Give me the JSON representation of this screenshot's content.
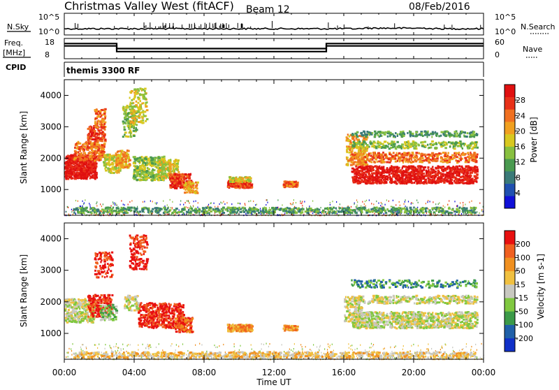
{
  "header": {
    "station": "Christmas Valley West (fitACF)",
    "beam": "Beam 12",
    "date": "08/Feb/2016"
  },
  "mini_panels": {
    "nsky_label": "N.Sky",
    "nsky_ticks": [
      "10^5",
      "10^0"
    ],
    "nsearch_label": "N.Search",
    "nsearch_ticks": [
      "10^5",
      "10^0"
    ],
    "freq_label_line1": "Freq.",
    "freq_label_line2": "[MHz]",
    "freq_ticks": [
      "18",
      "8"
    ],
    "nave_label": "Nave",
    "nave_ticks": [
      "60",
      "0"
    ],
    "cpid_label": "CPID",
    "cpid_text": "themis 3300 RF"
  },
  "chart_data": [
    {
      "type": "heatmap",
      "name": "power",
      "ylabel": "Slant Range [km]",
      "ylim": [
        180,
        4500
      ],
      "xlim_hours": [
        0,
        24
      ],
      "yticks": [
        1000,
        2000,
        3000,
        4000
      ],
      "colorbar": {
        "label": "Power [dB]",
        "range": [
          0,
          32
        ],
        "ticks": [
          "4",
          "8",
          "12",
          "16",
          "20",
          "24",
          "28"
        ],
        "colors": [
          "#1010d8",
          "#2050b0",
          "#3a7a78",
          "#4a9a50",
          "#88c040",
          "#d8c820",
          "#f0a020",
          "#f07020",
          "#e83018",
          "#e01010"
        ]
      }
    },
    {
      "type": "heatmap",
      "name": "velocity",
      "ylabel": "Slant Range [km]",
      "ylim": [
        180,
        4500
      ],
      "xlim_hours": [
        0,
        24
      ],
      "yticks": [
        1000,
        2000,
        3000,
        4000
      ],
      "colorbar": {
        "label": "Velocity [m s-1]",
        "ticks": [
          "200",
          "100",
          "50",
          "15",
          "-15",
          "-50",
          "-100",
          "-200"
        ],
        "colors": [
          "#1030c8",
          "#2060a8",
          "#3c9a48",
          "#80c840",
          "#c8c8c0",
          "#f0c040",
          "#f09020",
          "#f06020",
          "#e81010"
        ]
      }
    }
  ],
  "xaxis": {
    "ticks": [
      "00:00",
      "04:00",
      "08:00",
      "12:00",
      "16:00",
      "20:00",
      "00:00"
    ],
    "label": "Time UT"
  },
  "frequency_series": {
    "x_hours": [
      0,
      3,
      3,
      15,
      15,
      24
    ],
    "upper_mhz": [
      15.5,
      15.5,
      13.0,
      13.0,
      15.5,
      15.5
    ],
    "lower_mhz": [
      14.3,
      14.3,
      11.5,
      11.5,
      14.3,
      14.3
    ]
  },
  "echo_blobs_power": [
    {
      "t": 0.9,
      "r": 1750,
      "dt": 0.9,
      "dr": 380,
      "c": 9,
      "n": 170
    },
    {
      "t": 1.4,
      "r": 2250,
      "dt": 0.9,
      "dr": 300,
      "c": 7,
      "n": 70
    },
    {
      "t": 1.8,
      "r": 2800,
      "dt": 0.5,
      "dr": 250,
      "c": 8,
      "n": 40
    },
    {
      "t": 2.0,
      "r": 3300,
      "dt": 0.3,
      "dr": 300,
      "c": 7,
      "n": 25
    },
    {
      "t": 2.7,
      "r": 1850,
      "dt": 0.5,
      "dr": 300,
      "c": 5,
      "n": 40
    },
    {
      "t": 3.3,
      "r": 2000,
      "dt": 0.4,
      "dr": 280,
      "c": 6,
      "n": 40
    },
    {
      "t": 3.7,
      "r": 3200,
      "dt": 0.4,
      "dr": 500,
      "c": 4,
      "n": 45
    },
    {
      "t": 4.2,
      "r": 3700,
      "dt": 0.5,
      "dr": 550,
      "c": 5,
      "n": 45
    },
    {
      "t": 4.8,
      "r": 1700,
      "dt": 0.9,
      "dr": 380,
      "c": 4,
      "n": 100
    },
    {
      "t": 5.9,
      "r": 1700,
      "dt": 0.6,
      "dr": 320,
      "c": 5,
      "n": 60
    },
    {
      "t": 6.6,
      "r": 1300,
      "dt": 0.6,
      "dr": 230,
      "c": 8,
      "n": 70
    },
    {
      "t": 7.2,
      "r": 1100,
      "dt": 0.4,
      "dr": 180,
      "c": 6,
      "n": 25
    },
    {
      "t": 10.0,
      "r": 1200,
      "dt": 0.7,
      "dr": 120,
      "c": 8,
      "n": 60
    },
    {
      "t": 10.0,
      "r": 1350,
      "dt": 0.6,
      "dr": 80,
      "c": 5,
      "n": 25
    },
    {
      "t": 12.9,
      "r": 1200,
      "dt": 0.4,
      "dr": 90,
      "c": 7,
      "n": 30
    },
    {
      "t": 16.7,
      "r": 2300,
      "dt": 0.6,
      "dr": 500,
      "c": 6,
      "n": 70
    },
    {
      "t": 20.0,
      "r": 1500,
      "dt": 3.6,
      "dr": 280,
      "c": 9,
      "n": 360
    },
    {
      "t": 20.0,
      "r": 2050,
      "dt": 3.6,
      "dr": 160,
      "c": 7,
      "n": 130
    },
    {
      "t": 20.0,
      "r": 2450,
      "dt": 3.6,
      "dr": 120,
      "c": 4,
      "n": 90
    },
    {
      "t": 20.0,
      "r": 2800,
      "dt": 3.6,
      "dr": 90,
      "c": 3,
      "n": 70
    },
    {
      "t": 12.0,
      "r": 370,
      "dt": 11.5,
      "dr": 90,
      "c": 3,
      "n": 260
    }
  ],
  "echo_blobs_velocity": [
    {
      "t": 0.8,
      "r": 1750,
      "dt": 0.9,
      "dr": 380,
      "c": 4,
      "n": 120
    },
    {
      "t": 2.0,
      "r": 1900,
      "dt": 0.7,
      "dr": 350,
      "c": 8,
      "n": 70
    },
    {
      "t": 2.5,
      "r": 1700,
      "dt": 0.5,
      "dr": 250,
      "c": 3,
      "n": 25
    },
    {
      "t": 2.2,
      "r": 3200,
      "dt": 0.5,
      "dr": 400,
      "c": 8,
      "n": 35
    },
    {
      "t": 4.2,
      "r": 3600,
      "dt": 0.5,
      "dr": 550,
      "c": 8,
      "n": 45
    },
    {
      "t": 5.5,
      "r": 1600,
      "dt": 1.3,
      "dr": 400,
      "c": 8,
      "n": 140
    },
    {
      "t": 6.8,
      "r": 1300,
      "dt": 0.5,
      "dr": 230,
      "c": 7,
      "n": 50
    },
    {
      "t": 3.8,
      "r": 2000,
      "dt": 0.4,
      "dr": 250,
      "c": 4,
      "n": 25
    },
    {
      "t": 10.0,
      "r": 1200,
      "dt": 0.7,
      "dr": 110,
      "c": 6,
      "n": 60
    },
    {
      "t": 12.9,
      "r": 1200,
      "dt": 0.4,
      "dr": 80,
      "c": 6,
      "n": 25
    },
    {
      "t": 16.5,
      "r": 1800,
      "dt": 0.5,
      "dr": 400,
      "c": 4,
      "n": 50
    },
    {
      "t": 20.0,
      "r": 1450,
      "dt": 3.6,
      "dr": 260,
      "c": 4,
      "n": 320
    },
    {
      "t": 20.0,
      "r": 2100,
      "dt": 3.6,
      "dr": 130,
      "c": 4,
      "n": 110
    },
    {
      "t": 20.0,
      "r": 2600,
      "dt": 3.6,
      "dr": 120,
      "c": 2,
      "n": 60
    },
    {
      "t": 12.0,
      "r": 350,
      "dt": 11.5,
      "dr": 90,
      "c": 5,
      "n": 260
    }
  ]
}
